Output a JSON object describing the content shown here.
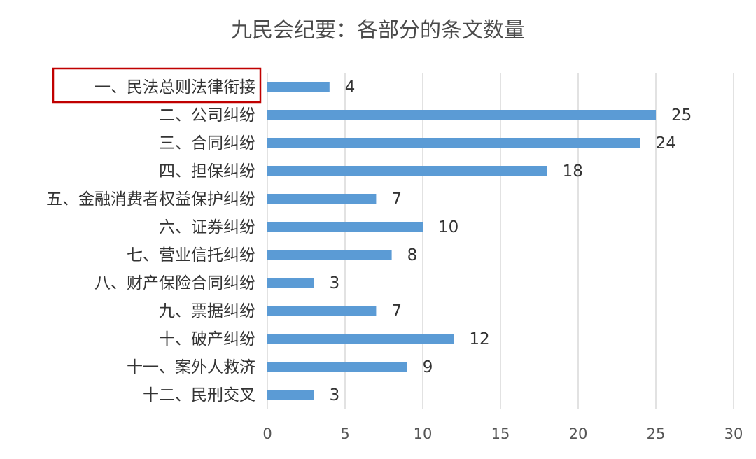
{
  "chart_data": {
    "type": "bar",
    "orientation": "horizontal",
    "title": "九民会纪要：各部分的条文数量",
    "categories": [
      "一、民法总则法律衔接",
      "二、公司纠纷",
      "三、合同纠纷",
      "四、担保纠纷",
      "五、金融消费者权益保护纠纷",
      "六、证券纠纷",
      "七、营业信托纠纷",
      "八、财产保险合同纠纷",
      "九、票据纠纷",
      "十、破产纠纷",
      "十一、案外人救济",
      "十二、民刑交叉"
    ],
    "values": [
      4,
      25,
      24,
      18,
      7,
      10,
      8,
      3,
      7,
      12,
      9,
      3
    ],
    "xlim": [
      0,
      30
    ],
    "xticks": [
      "0",
      "5",
      "10",
      "15",
      "20",
      "25",
      "30"
    ],
    "highlighted_category": "一、民法总则法律衔接",
    "grid": true,
    "bar_color": "#5b9bd5",
    "highlight_color": "#c00000"
  }
}
